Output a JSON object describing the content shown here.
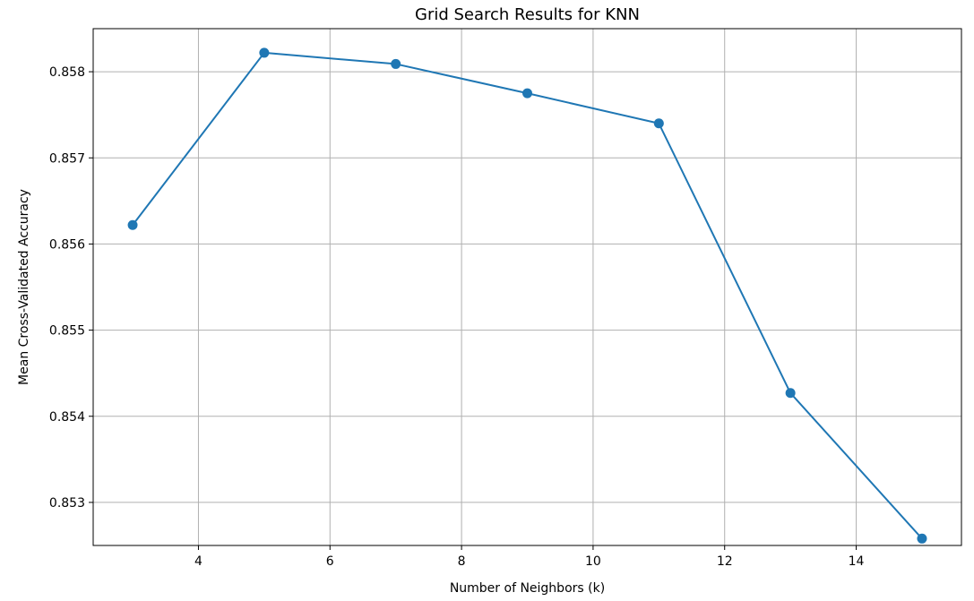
{
  "chart_data": {
    "type": "line",
    "title": "Grid Search Results for KNN",
    "xlabel": "Number of Neighbors (k)",
    "ylabel": "Mean Cross-Validated Accuracy",
    "x": [
      3,
      5,
      7,
      9,
      11,
      13,
      15
    ],
    "series": [
      {
        "values": [
          0.85622,
          0.85822,
          0.85809,
          0.85775,
          0.8574,
          0.85427,
          0.85258
        ],
        "color": "#1f77b4",
        "marker": "circle"
      }
    ],
    "xlim": [
      2.4,
      15.6
    ],
    "ylim": [
      0.8525,
      0.8585
    ],
    "xticks": [
      4,
      6,
      8,
      10,
      12,
      14
    ],
    "xtick_labels": [
      "4",
      "6",
      "8",
      "10",
      "12",
      "14"
    ],
    "yticks": [
      0.853,
      0.854,
      0.855,
      0.856,
      0.857,
      0.858
    ],
    "ytick_labels": [
      "0.853",
      "0.854",
      "0.855",
      "0.856",
      "0.857",
      "0.858"
    ],
    "grid": true
  }
}
